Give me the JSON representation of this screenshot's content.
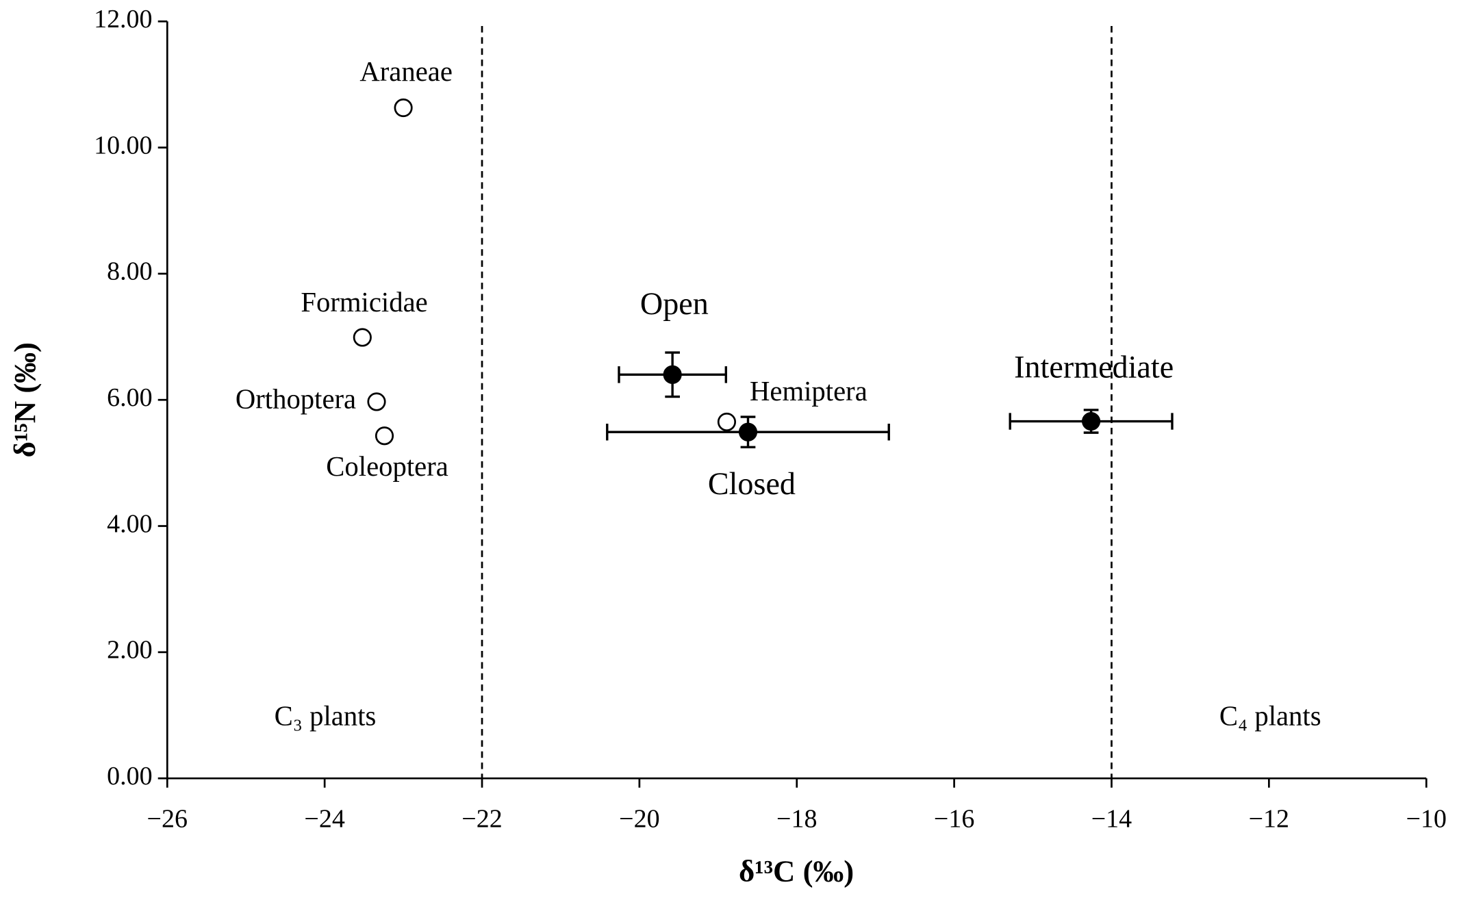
{
  "chart_data": {
    "type": "scatter",
    "xlabel": "δ¹³C (‰)",
    "ylabel": "δ¹⁵N (‰)",
    "xlim": [
      -26,
      -10
    ],
    "ylim": [
      0,
      12
    ],
    "xticks": [
      {
        "value": -26,
        "label": "−26"
      },
      {
        "value": -24,
        "label": "−24"
      },
      {
        "value": -22,
        "label": "−22"
      },
      {
        "value": -20,
        "label": "−20"
      },
      {
        "value": -18,
        "label": "−18"
      },
      {
        "value": -16,
        "label": "−16"
      },
      {
        "value": -14,
        "label": "−14"
      },
      {
        "value": -12,
        "label": "−12"
      },
      {
        "value": -10,
        "label": "−10"
      }
    ],
    "yticks": [
      {
        "value": 0,
        "label": "0.00"
      },
      {
        "value": 2,
        "label": "2.00"
      },
      {
        "value": 4,
        "label": "4.00"
      },
      {
        "value": 6,
        "label": "6.00"
      },
      {
        "value": 8,
        "label": "8.00"
      },
      {
        "value": 10,
        "label": "10.00"
      },
      {
        "value": 12,
        "label": "12.00"
      }
    ],
    "vlines": [
      -22,
      -14
    ],
    "annotations": [
      "C₃ plants",
      "C₄ plants"
    ],
    "series": [
      {
        "marker": "open",
        "color": "#000000",
        "labels": [
          "Araneae",
          "Formicidae",
          "Orthoptera",
          "Coleoptera",
          "Hemiptera"
        ],
        "x": [
          -23.0,
          -23.52,
          -23.34,
          -23.24,
          -18.89
        ],
        "values": [
          10.63,
          6.99,
          5.97,
          5.43,
          5.65
        ]
      },
      {
        "marker": "filled",
        "color": "#000000",
        "labels": [
          "Open",
          "Closed",
          "Intermediate"
        ],
        "x": [
          -19.58,
          -18.62,
          -14.26
        ],
        "values": [
          6.4,
          5.49,
          5.66
        ],
        "x_error": [
          0.68,
          1.79,
          1.03
        ],
        "y_error": [
          0.35,
          0.24,
          0.18
        ]
      }
    ]
  }
}
